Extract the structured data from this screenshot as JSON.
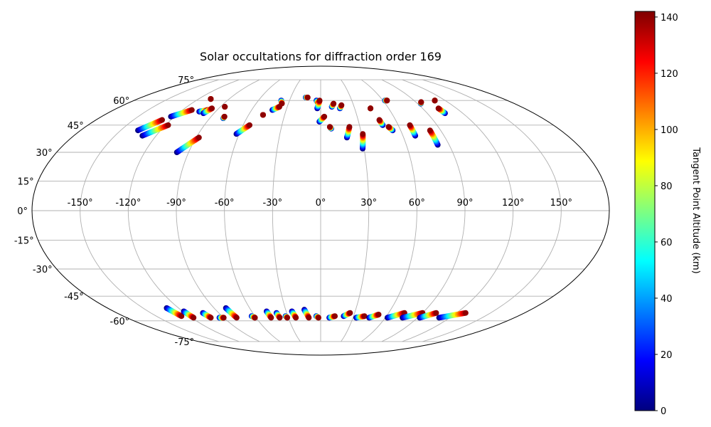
{
  "chart_data": {
    "type": "scatter",
    "projection": "mollweide",
    "title": "Solar occultations for diffraction order 169",
    "lon_tick_labels": [
      "-150°",
      "-120°",
      "-90°",
      "-60°",
      "-30°",
      "0°",
      "30°",
      "60°",
      "90°",
      "120°",
      "150°"
    ],
    "lon_ticks": [
      -150,
      -120,
      -90,
      -60,
      -30,
      0,
      30,
      60,
      90,
      120,
      150
    ],
    "lat_tick_labels": [
      "-75°",
      "-60°",
      "-45°",
      "-30°",
      "-15°",
      "0°",
      "15°",
      "30°",
      "45°",
      "60°",
      "75°"
    ],
    "lat_ticks": [
      -75,
      -60,
      -45,
      -30,
      -15,
      0,
      15,
      30,
      45,
      60,
      75
    ],
    "grid": true,
    "colorbar": {
      "label": "Tangent Point Altitude (km)",
      "min": 0,
      "max": 142,
      "colormap": "jet",
      "tick_values": [
        0,
        20,
        40,
        60,
        80,
        100,
        120,
        140
      ],
      "tick_labels": [
        "0",
        "20",
        "40",
        "60",
        "80",
        "100",
        "120",
        "140"
      ],
      "placement": "right"
    },
    "altitude_range_km": [
      0,
      140
    ],
    "tracks": [
      {
        "lon1": -137,
        "lat1": 42,
        "lon2": -127,
        "lat2": 48
      },
      {
        "lon1": -130,
        "lat1": 39,
        "lon2": -118,
        "lat2": 45
      },
      {
        "lon1": -123,
        "lat1": 50,
        "lon2": -112,
        "lat2": 54
      },
      {
        "lon1": -108,
        "lat1": 61,
        "lon2": -108,
        "lat2": 61
      },
      {
        "lon1": -104,
        "lat1": 53,
        "lon2": -98,
        "lat2": 54
      },
      {
        "lon1": -99,
        "lat1": 52,
        "lon2": -96,
        "lat2": 55
      },
      {
        "lon1": -86,
        "lat1": 56,
        "lon2": -86,
        "lat2": 56
      },
      {
        "lon1": -79,
        "lat1": 49,
        "lon2": -79,
        "lat2": 50
      },
      {
        "lon1": -98,
        "lat1": 30,
        "lon2": -88,
        "lat2": 38
      },
      {
        "lon1": -62,
        "lat1": 40,
        "lon2": -55,
        "lat2": 45
      },
      {
        "lon1": -48,
        "lat1": 51,
        "lon2": -48,
        "lat2": 51
      },
      {
        "lon1": -42,
        "lat1": 54,
        "lon2": -37,
        "lat2": 56
      },
      {
        "lon1": -38,
        "lat1": 60,
        "lon2": -36,
        "lat2": 58
      },
      {
        "lon1": -15,
        "lat1": 62,
        "lon2": -13,
        "lat2": 62
      },
      {
        "lon1": -4,
        "lat1": 60,
        "lon2": -2,
        "lat2": 58
      },
      {
        "lon1": -3,
        "lat1": 55,
        "lon2": -1,
        "lat2": 60
      },
      {
        "lon1": -1,
        "lat1": 47,
        "lon2": 3,
        "lat2": 50
      },
      {
        "lon1": 8,
        "lat1": 43,
        "lon2": 7,
        "lat2": 44
      },
      {
        "lon1": 10,
        "lat1": 56,
        "lon2": 12,
        "lat2": 58
      },
      {
        "lon1": 17,
        "lat1": 55,
        "lon2": 19,
        "lat2": 57
      },
      {
        "lon1": 19,
        "lat1": 38,
        "lon2": 22,
        "lat2": 44
      },
      {
        "lon1": 29,
        "lat1": 32,
        "lon2": 31,
        "lat2": 40
      },
      {
        "lon1": 44,
        "lat1": 55,
        "lon2": 44,
        "lat2": 55
      },
      {
        "lon1": 48,
        "lat1": 45,
        "lon2": 47,
        "lat2": 48
      },
      {
        "lon1": 54,
        "lat1": 42,
        "lon2": 52,
        "lat2": 44
      },
      {
        "lon1": 62,
        "lat1": 60,
        "lon2": 64,
        "lat2": 60
      },
      {
        "lon1": 69,
        "lat1": 39,
        "lon2": 69,
        "lat2": 45
      },
      {
        "lon1": 82,
        "lat1": 34,
        "lon2": 82,
        "lat2": 42
      },
      {
        "lon1": 93,
        "lat1": 58,
        "lon2": 95,
        "lat2": 59
      },
      {
        "lon1": 105,
        "lat1": 52,
        "lon2": 104,
        "lat2": 55
      },
      {
        "lon1": 110,
        "lat1": 60,
        "lon2": 110,
        "lat2": 60
      },
      {
        "lon1": -130,
        "lat1": -52,
        "lon2": -127,
        "lat2": -57
      },
      {
        "lon1": -119,
        "lat1": -54,
        "lon2": -118,
        "lat2": -58
      },
      {
        "lon1": -104,
        "lat1": -55,
        "lon2": -102,
        "lat2": -58
      },
      {
        "lon1": -94,
        "lat1": -58,
        "lon2": -90,
        "lat2": -58
      },
      {
        "lon1": -80,
        "lat1": -52,
        "lon2": -78,
        "lat2": -58
      },
      {
        "lon1": -63,
        "lat1": -57,
        "lon2": -61,
        "lat2": -58
      },
      {
        "lon1": -47,
        "lat1": -54,
        "lon2": -46,
        "lat2": -58
      },
      {
        "lon1": -39,
        "lat1": -55,
        "lon2": -38,
        "lat2": -58
      },
      {
        "lon1": -32,
        "lat1": -57,
        "lon2": -31,
        "lat2": -58
      },
      {
        "lon1": -25,
        "lat1": -54,
        "lon2": -23,
        "lat2": -58
      },
      {
        "lon1": -14,
        "lat1": -53,
        "lon2": -11,
        "lat2": -58
      },
      {
        "lon1": -4,
        "lat1": -57,
        "lon2": -2,
        "lat2": -58
      },
      {
        "lon1": 8,
        "lat1": -58,
        "lon2": 13,
        "lat2": -57
      },
      {
        "lon1": 21,
        "lat1": -57,
        "lon2": 26,
        "lat2": -55
      },
      {
        "lon1": 33,
        "lat1": -58,
        "lon2": 40,
        "lat2": -57
      },
      {
        "lon1": 45,
        "lat1": -58,
        "lon2": 52,
        "lat2": -56
      },
      {
        "lon1": 62,
        "lat1": -58,
        "lon2": 74,
        "lat2": -55
      },
      {
        "lon1": 76,
        "lat1": -58,
        "lon2": 90,
        "lat2": -55
      },
      {
        "lon1": 92,
        "lat1": -58,
        "lon2": 102,
        "lat2": -55
      },
      {
        "lon1": 110,
        "lat1": -58,
        "lon2": 128,
        "lat2": -55
      }
    ]
  }
}
